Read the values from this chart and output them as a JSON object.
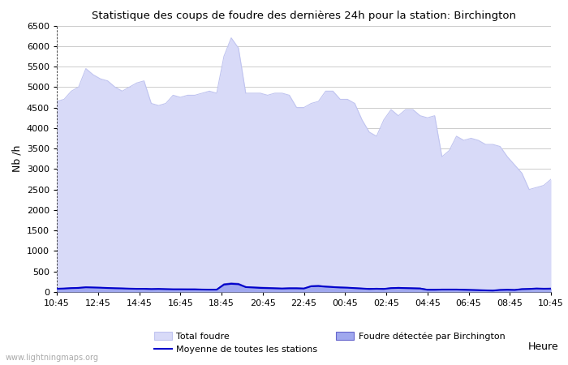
{
  "title": "Statistique des coups de foudre des dernières 24h pour la station: Birchington",
  "xlabel": "Heure",
  "ylabel": "Nb /h",
  "ylim": [
    0,
    6500
  ],
  "yticks": [
    0,
    500,
    1000,
    1500,
    2000,
    2500,
    3000,
    3500,
    4000,
    4500,
    5000,
    5500,
    6000,
    6500
  ],
  "x_labels": [
    "10:45",
    "12:45",
    "14:45",
    "16:45",
    "18:45",
    "20:45",
    "22:45",
    "00:45",
    "02:45",
    "04:45",
    "06:45",
    "08:45",
    "10:45"
  ],
  "watermark": "www.lightningmaps.org",
  "total_foudre_color": "#d8daf8",
  "total_foudre_line_color": "#c0c4f0",
  "birchington_color": "#a0a8ee",
  "birchington_line_color": "#6666cc",
  "moyenne_color": "#0000cc",
  "background_color": "#ffffff",
  "grid_color": "#cccccc",
  "total_foudre": [
    4650,
    4700,
    4900,
    5000,
    5450,
    5300,
    5200,
    5150,
    5000,
    4900,
    5000,
    5100,
    5150,
    4600,
    4550,
    4600,
    4800,
    4750,
    4800,
    4800,
    4850,
    4900,
    4850,
    5750,
    6200,
    5950,
    4850,
    4850,
    4850,
    4800,
    4850,
    4850,
    4800,
    4500,
    4500,
    4600,
    4650,
    4900,
    4900,
    4700,
    4700,
    4600,
    4200,
    3900,
    3800,
    4200,
    4450,
    4300,
    4450,
    4450,
    4300,
    4250,
    4300,
    3300,
    3450,
    3800,
    3700,
    3750,
    3700,
    3600,
    3600,
    3550,
    3300,
    3100,
    2900,
    2500,
    2550,
    2600,
    2750
  ],
  "birchington": [
    80,
    90,
    100,
    110,
    120,
    115,
    110,
    100,
    95,
    90,
    85,
    80,
    80,
    75,
    80,
    75,
    70,
    70,
    70,
    70,
    65,
    60,
    60,
    200,
    220,
    210,
    130,
    120,
    115,
    110,
    100,
    90,
    100,
    100,
    90,
    150,
    160,
    140,
    130,
    120,
    110,
    100,
    90,
    80,
    85,
    80,
    100,
    110,
    105,
    100,
    95,
    60,
    60,
    65,
    65,
    65,
    60,
    55,
    50,
    45,
    40,
    55,
    60,
    55,
    75,
    80,
    90,
    85,
    90
  ],
  "moyenne": [
    80,
    85,
    95,
    100,
    115,
    110,
    105,
    98,
    92,
    88,
    82,
    78,
    78,
    72,
    75,
    70,
    66,
    66,
    65,
    65,
    60,
    58,
    58,
    180,
    200,
    190,
    120,
    110,
    100,
    95,
    90,
    85,
    90,
    90,
    85,
    140,
    145,
    130,
    120,
    110,
    105,
    95,
    85,
    75,
    80,
    75,
    95,
    100,
    95,
    90,
    85,
    55,
    55,
    60,
    60,
    60,
    55,
    50,
    45,
    40,
    35,
    50,
    55,
    50,
    70,
    75,
    85,
    80,
    82
  ]
}
